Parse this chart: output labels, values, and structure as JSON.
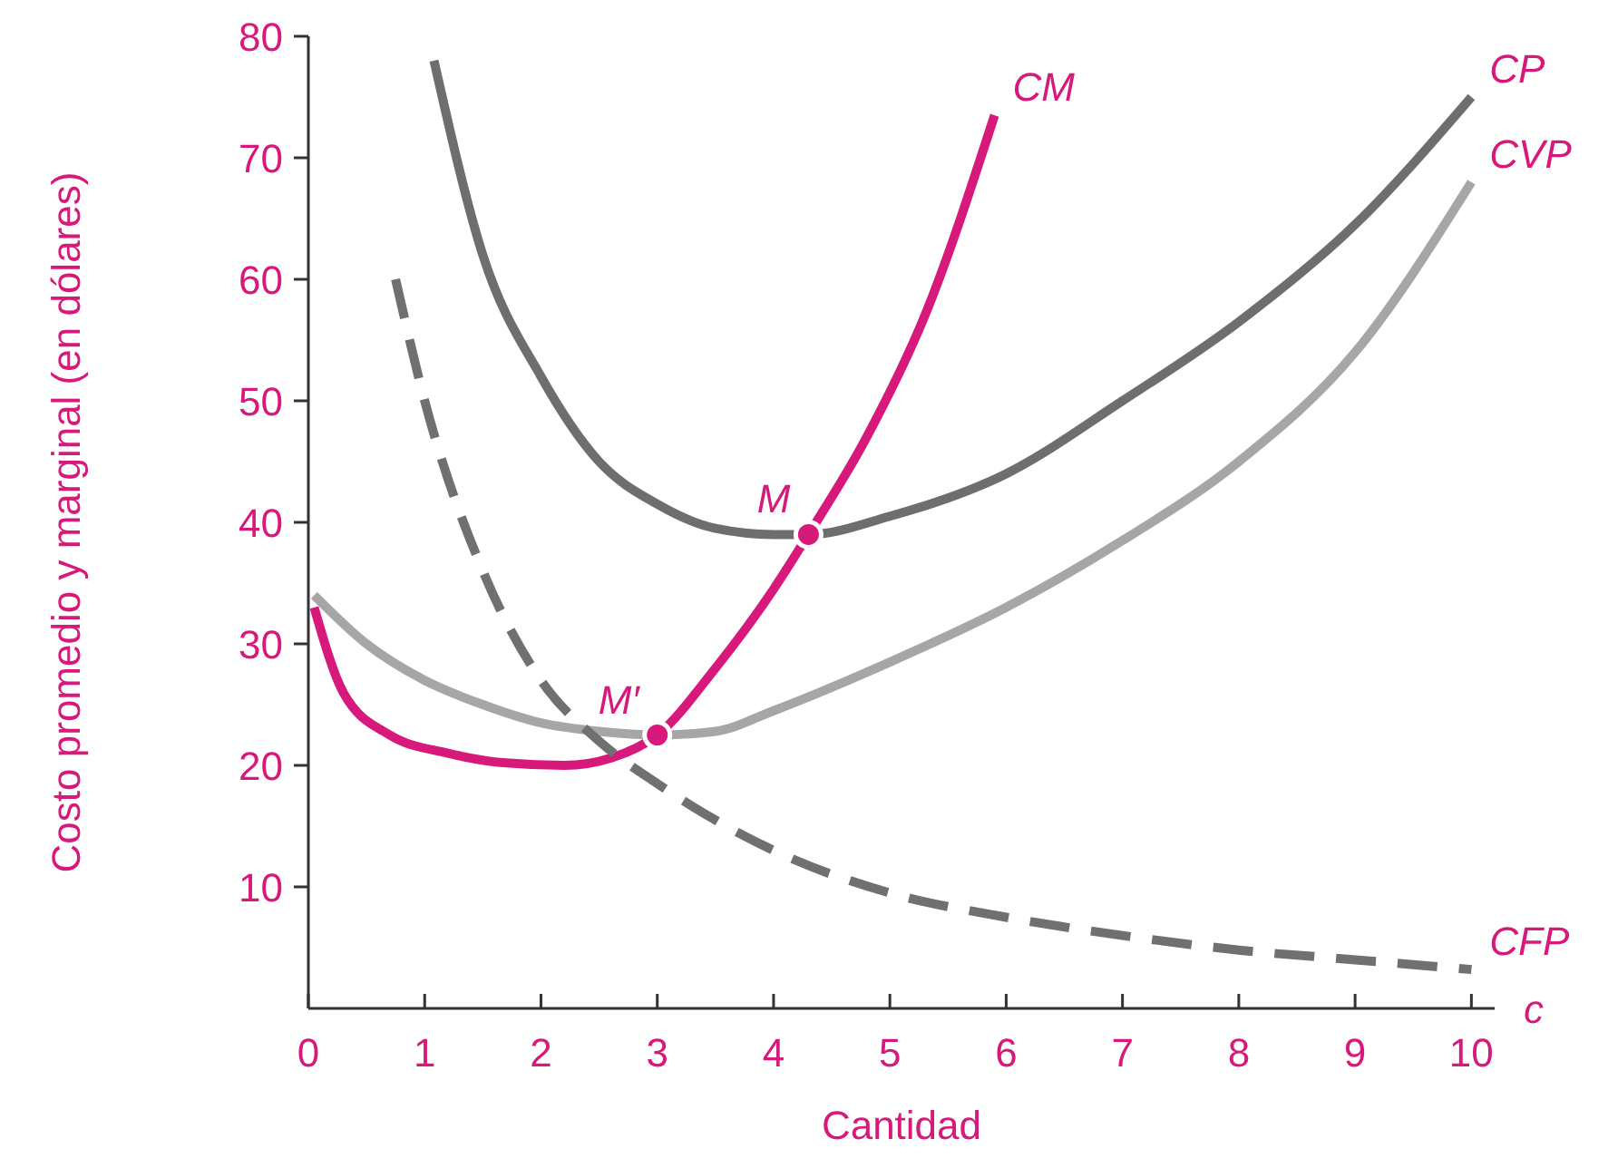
{
  "chart_data": {
    "type": "line",
    "xlabel": "Cantidad",
    "ylabel": "Costo promedio y marginal (en dólares)",
    "xlim": [
      0,
      10.2
    ],
    "ylim": [
      0,
      80
    ],
    "xticks": [
      0,
      1,
      2,
      3,
      4,
      5,
      6,
      7,
      8,
      9,
      10
    ],
    "yticks": [
      10,
      20,
      30,
      40,
      50,
      60,
      70,
      80
    ],
    "grid": false,
    "marker": "none",
    "line_style": "solid",
    "series": [
      {
        "name": "CM",
        "color": "#d6197a",
        "x": [
          0.05,
          0.3,
          0.7,
          1.2,
          1.7,
          2.2,
          2.6,
          3,
          3.5,
          4,
          4.3,
          4.8,
          5.3,
          5.9
        ],
        "values": [
          33,
          26,
          22.5,
          21,
          20.2,
          20,
          20.6,
          22.5,
          28,
          34.5,
          39,
          47,
          57,
          73.5
        ]
      },
      {
        "name": "CP",
        "color": "#6e6e6e",
        "x": [
          1.08,
          1.5,
          2,
          2.5,
          3,
          3.5,
          4,
          4.3,
          5,
          6,
          7,
          8,
          9,
          10
        ],
        "values": [
          78,
          62,
          52,
          45,
          41.5,
          39.5,
          39,
          39,
          40.5,
          44,
          50,
          56.5,
          64.5,
          75
        ]
      },
      {
        "name": "CVP",
        "color": "#a6a6a6",
        "x": [
          0.05,
          0.5,
          1,
          1.5,
          2,
          2.5,
          3,
          3.5,
          4,
          5,
          6,
          7,
          8,
          9,
          10
        ],
        "values": [
          34,
          30,
          27,
          25,
          23.5,
          22.8,
          22.5,
          22.8,
          24.5,
          28.5,
          33,
          38.5,
          45,
          54,
          68
        ]
      },
      {
        "name": "CFP",
        "color": "#707070",
        "line_style": "dashed",
        "x": [
          0.75,
          1,
          1.5,
          2,
          2.5,
          3,
          4,
          5,
          6,
          7,
          8,
          9,
          10
        ],
        "values": [
          60,
          50,
          36,
          27,
          22,
          18.5,
          13,
          9.5,
          7.5,
          6,
          4.8,
          4,
          3.2
        ]
      }
    ],
    "annotations": [
      "c",
      {
        "text": "M",
        "x": 4.3,
        "y": 39
      },
      {
        "text": "M′",
        "x": 3,
        "y": 22.5
      }
    ]
  }
}
